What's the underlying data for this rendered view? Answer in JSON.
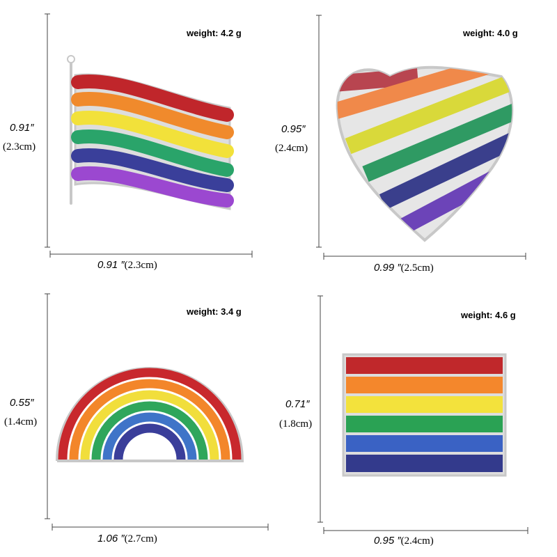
{
  "panels": [
    {
      "weight": "weight: 4.2 g",
      "height_in": "0.91″",
      "height_cm": "(2.3cm)",
      "width_in": "0.91 ″",
      "width_cm": "(2.3cm)"
    },
    {
      "weight": "weight: 4.0 g",
      "height_in": "0.95″",
      "height_cm": "(2.4cm)",
      "width_in": "0.99 ″",
      "width_cm": "(2.5cm)"
    },
    {
      "weight": "weight: 3.4 g",
      "height_in": "0.55″",
      "height_cm": "(1.4cm)",
      "width_in": "1.06 ″",
      "width_cm": "(2.7cm)"
    },
    {
      "weight": "weight: 4.6 g",
      "height_in": "0.71″",
      "height_cm": "(1.8cm)",
      "width_in": "0.95 ″",
      "width_cm": "(2.4cm)"
    }
  ]
}
